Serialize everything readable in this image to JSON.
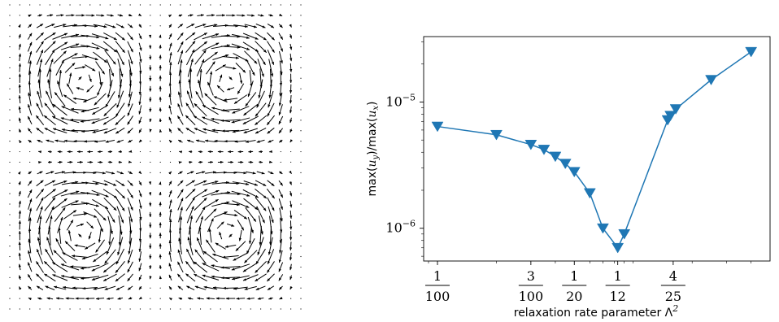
{
  "chart_data": [
    {
      "type": "quiver",
      "grid_cols": 30,
      "grid_rows": 30,
      "arrow_color": "#000000",
      "pattern": "four counter-rotating vortex pairs (mirror-symmetric about both midlines)"
    },
    {
      "type": "line",
      "xscale": "log",
      "yscale": "log",
      "xlabel": "relaxation rate parameter Λ²",
      "ylabel": "max(u_y)/max(u_x)",
      "xlim": [
        0.0085,
        0.5
      ],
      "ylim": [
        5.5e-07,
        3.3e-05
      ],
      "grid": false,
      "color": "#1f77b4",
      "marker": "triangle-down",
      "x_ticks": [
        {
          "value": 0.01,
          "num": "1",
          "den": "100"
        },
        {
          "value": 0.03,
          "num": "3",
          "den": "100"
        },
        {
          "value": 0.05,
          "num": "1",
          "den": "20"
        },
        {
          "value": 0.08333,
          "num": "1",
          "den": "12"
        },
        {
          "value": 0.16,
          "num": "4",
          "den": "25"
        }
      ],
      "y_ticks": [
        {
          "value": 1e-06,
          "base": "10",
          "exp": "−6"
        },
        {
          "value": 1e-05,
          "base": "10",
          "exp": "−5"
        }
      ],
      "series": [
        {
          "x": [
            0.01,
            0.02,
            0.03,
            0.035,
            0.04,
            0.045,
            0.05,
            0.06,
            0.07,
            0.08333,
            0.09,
            0.15,
            0.155,
            0.165,
            0.25,
            0.4
          ],
          "y": [
            6.4e-06,
            5.5e-06,
            4.6e-06,
            4.2e-06,
            3.7e-06,
            3.25e-06,
            2.8e-06,
            1.9e-06,
            1e-06,
            7e-07,
            9e-07,
            7.2e-06,
            7.8e-06,
            8.8e-06,
            1.5e-05,
            2.5e-05
          ]
        }
      ]
    }
  ],
  "labels": {
    "xlabel_text": "relaxation rate parameter Λ",
    "xlabel_sup": "2",
    "ylabel_pre": "max(",
    "ylabel_u1": "u",
    "ylabel_s1": "y",
    "ylabel_mid": ")/max(",
    "ylabel_u2": "u",
    "ylabel_s2": "x",
    "ylabel_post": ")"
  }
}
